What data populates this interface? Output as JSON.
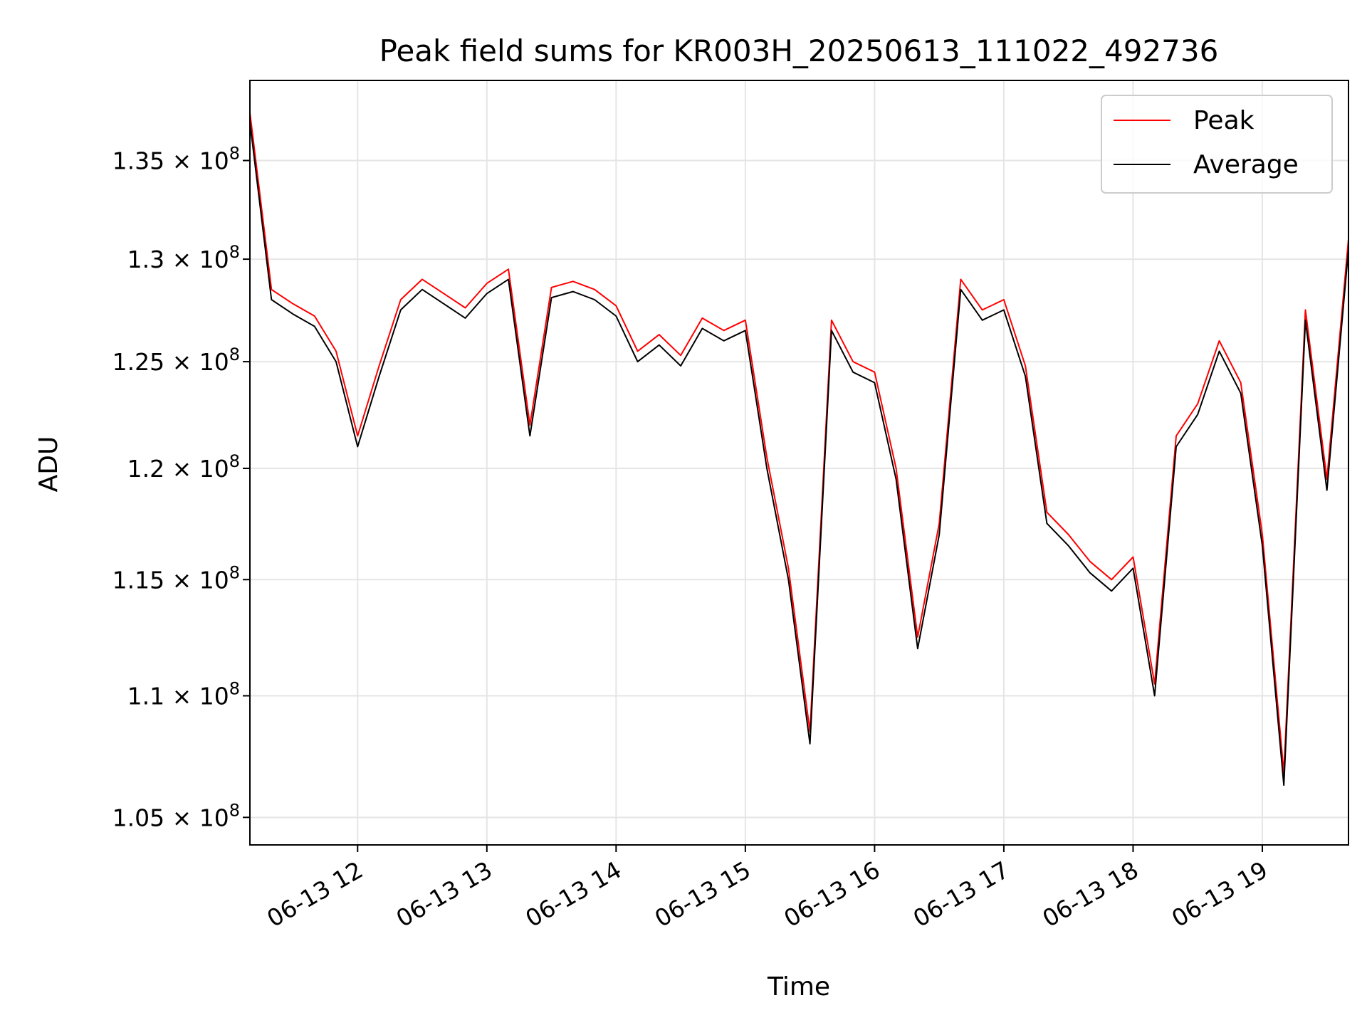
{
  "chart_data": {
    "type": "line",
    "title": "Peak field sums for KR003H_20250613_111022_492736",
    "xlabel": "Time",
    "ylabel": "ADU",
    "x_axis_type": "datetime",
    "x_ticks": [
      "06-13 12",
      "06-13 13",
      "06-13 14",
      "06-13 15",
      "06-13 16",
      "06-13 17",
      "06-13 18",
      "06-13 19"
    ],
    "x_tick_rotation": 30,
    "xlim": [
      "2025-06-13 11:10",
      "2025-06-13 19:40"
    ],
    "y_scale": "log",
    "ylim": [
      103900000,
      139200000
    ],
    "y_ticks": [
      {
        "value": 105000000,
        "mantissa": "1.05"
      },
      {
        "value": 110000000,
        "mantissa": "1.1"
      },
      {
        "value": 115000000,
        "mantissa": "1.15"
      },
      {
        "value": 120000000,
        "mantissa": "1.2"
      },
      {
        "value": 125000000,
        "mantissa": "1.25"
      },
      {
        "value": 130000000,
        "mantissa": "1.3"
      },
      {
        "value": 135000000,
        "mantissa": "1.35"
      }
    ],
    "y_tick_base": "10",
    "y_tick_exponent": "8",
    "grid": true,
    "legend_position": "top-right",
    "colors": {
      "peak": "#ff0000",
      "average": "#000000",
      "grid": "#e5e5e5"
    },
    "x": [
      "11:10",
      "11:20",
      "11:30",
      "11:40",
      "11:50",
      "12:00",
      "12:10",
      "12:20",
      "12:30",
      "12:40",
      "12:50",
      "13:00",
      "13:10",
      "13:20",
      "13:30",
      "13:40",
      "13:50",
      "14:00",
      "14:10",
      "14:20",
      "14:30",
      "14:40",
      "14:50",
      "15:00",
      "15:10",
      "15:20",
      "15:30",
      "15:40",
      "15:50",
      "16:00",
      "16:10",
      "16:20",
      "16:30",
      "16:40",
      "16:50",
      "17:00",
      "17:10",
      "17:20",
      "17:30",
      "17:40",
      "17:50",
      "18:00",
      "18:10",
      "18:20",
      "18:30",
      "18:40",
      "18:50",
      "19:00",
      "19:10",
      "19:20",
      "19:30",
      "19:40"
    ],
    "series": [
      {
        "name": "Peak",
        "color": "#ff0000",
        "values": [
          137500000,
          128500000,
          127800000,
          127200000,
          125500000,
          121500000,
          124800000,
          128000000,
          129000000,
          128300000,
          127600000,
          128800000,
          129500000,
          122000000,
          128600000,
          128900000,
          128500000,
          127700000,
          125500000,
          126300000,
          125300000,
          127100000,
          126500000,
          127000000,
          120500000,
          115500000,
          108500000,
          127000000,
          125000000,
          124500000,
          120000000,
          112500000,
          117500000,
          129000000,
          127500000,
          128000000,
          124800000,
          118000000,
          117000000,
          115800000,
          115000000,
          116000000,
          110500000,
          121500000,
          123000000,
          126000000,
          124000000,
          117000000,
          106800000,
          127500000,
          119500000,
          131000000
        ]
      },
      {
        "name": "Average",
        "color": "#000000",
        "values": [
          137000000,
          128000000,
          127300000,
          126700000,
          125000000,
          121000000,
          124300000,
          127500000,
          128500000,
          127800000,
          127100000,
          128300000,
          129000000,
          121500000,
          128100000,
          128400000,
          128000000,
          127200000,
          125000000,
          125800000,
          124800000,
          126600000,
          126000000,
          126500000,
          120000000,
          115000000,
          108000000,
          126500000,
          124500000,
          124000000,
          119500000,
          112000000,
          117000000,
          128500000,
          127000000,
          127500000,
          124300000,
          117500000,
          116500000,
          115300000,
          114500000,
          115500000,
          110000000,
          121000000,
          122500000,
          125500000,
          123500000,
          116500000,
          106300000,
          127000000,
          119000000,
          130500000
        ]
      }
    ]
  }
}
